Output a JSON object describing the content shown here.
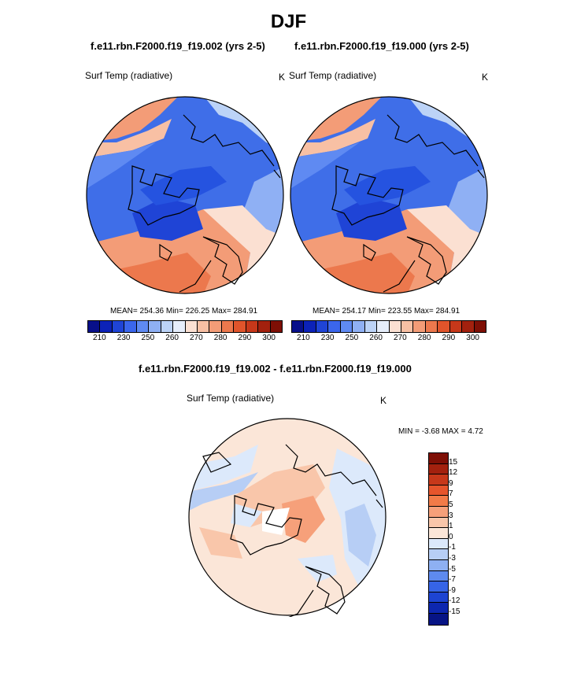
{
  "title": "DJF",
  "panel1": {
    "title": "f.e11.rbn.F2000.f19_f19.002 (yrs 2-5)",
    "variable": "Surf Temp (radiative)",
    "units": "K",
    "stats": "MEAN= 254.36  Min= 226.25  Max= 284.91"
  },
  "panel2": {
    "title": "f.e11.rbn.F2000.f19_f19.000 (yrs 2-5)",
    "variable": "Surf Temp (radiative)",
    "units": "K",
    "stats": "MEAN= 254.17  Min= 223.55  Max= 284.91"
  },
  "diff": {
    "title": "f.e11.rbn.F2000.f19_f19.002 - f.e11.rbn.F2000.f19_f19.000",
    "variable": "Surf Temp (radiative)",
    "units": "K",
    "minmax": "MIN =  -3.68 MAX =   4.72"
  },
  "colorbar_abs": {
    "colors": [
      "#08108a",
      "#0c22b8",
      "#1f44d6",
      "#3b66ec",
      "#5f8af2",
      "#8fb0f4",
      "#bcd3f7",
      "#e6eefb",
      "#fbe0d2",
      "#f8c0a4",
      "#f39c77",
      "#ec784d",
      "#e0542b",
      "#c7381a",
      "#a3210e",
      "#7e0f05"
    ],
    "labels": [
      "210",
      "230",
      "250",
      "260",
      "270",
      "280",
      "290",
      "300"
    ]
  },
  "colorbar_diff": {
    "colors": [
      "#7e0f05",
      "#a3210e",
      "#c7381a",
      "#e6552c",
      "#f27b48",
      "#f6a07a",
      "#f9c6aa",
      "#fbe6d8",
      "#dce9fb",
      "#b7cef5",
      "#8eb0f2",
      "#5e8aee",
      "#3664e6",
      "#1d44d2",
      "#0d27b0",
      "#071485"
    ],
    "labels": [
      "15",
      "12",
      "9",
      "7",
      "5",
      "3",
      "1",
      "0",
      "-1",
      "-3",
      "-5",
      "-7",
      "-9",
      "-12",
      "-15"
    ]
  }
}
